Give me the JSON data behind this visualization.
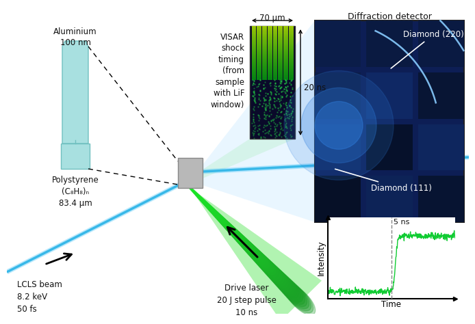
{
  "bg_color": "#ffffff",
  "aluminium_label": "Aluminium\n100 nm",
  "polystyrene_label": "Polystyrene\n(C₈H₈)ₙ\n83.4 μm",
  "visar_label": "VISAR\nshock\ntiming\n(from\nsample\nwith LiF\nwindow)",
  "visar_width_label": "70 μm",
  "visar_time_label": "20 ns",
  "detector_label": "Diffraction detector",
  "diamond220_label": "Diamond (220)",
  "diamond111_label": "Diamond (111)",
  "lcls_label": "LCLS beam\n8.2 keV\n50 fs",
  "drive_laser_label": "Drive laser\n20 J step pulse\n10 ns",
  "intensity_label": "Intensity",
  "time_label": "Time",
  "ns_label": "5 ns",
  "al_color": "#a8e0e0",
  "al_edge": "#70c0c0",
  "beam_blue": "#38b0e0",
  "beam_blue2": "#55c8f0",
  "green_laser": "#44dd44",
  "detector_dark": "#0d1e55",
  "detector_mid": "#1535a0",
  "detector_bright": "#2060c8",
  "gray_mount": "#b8b8b8",
  "gray_mount_edge": "#888888",
  "visar_bg": "#0a0a2a",
  "visar_stripe1": "#c8e800",
  "visar_stripe2": "#44cc22",
  "white_text": "#ffffff",
  "black_text": "#111111"
}
